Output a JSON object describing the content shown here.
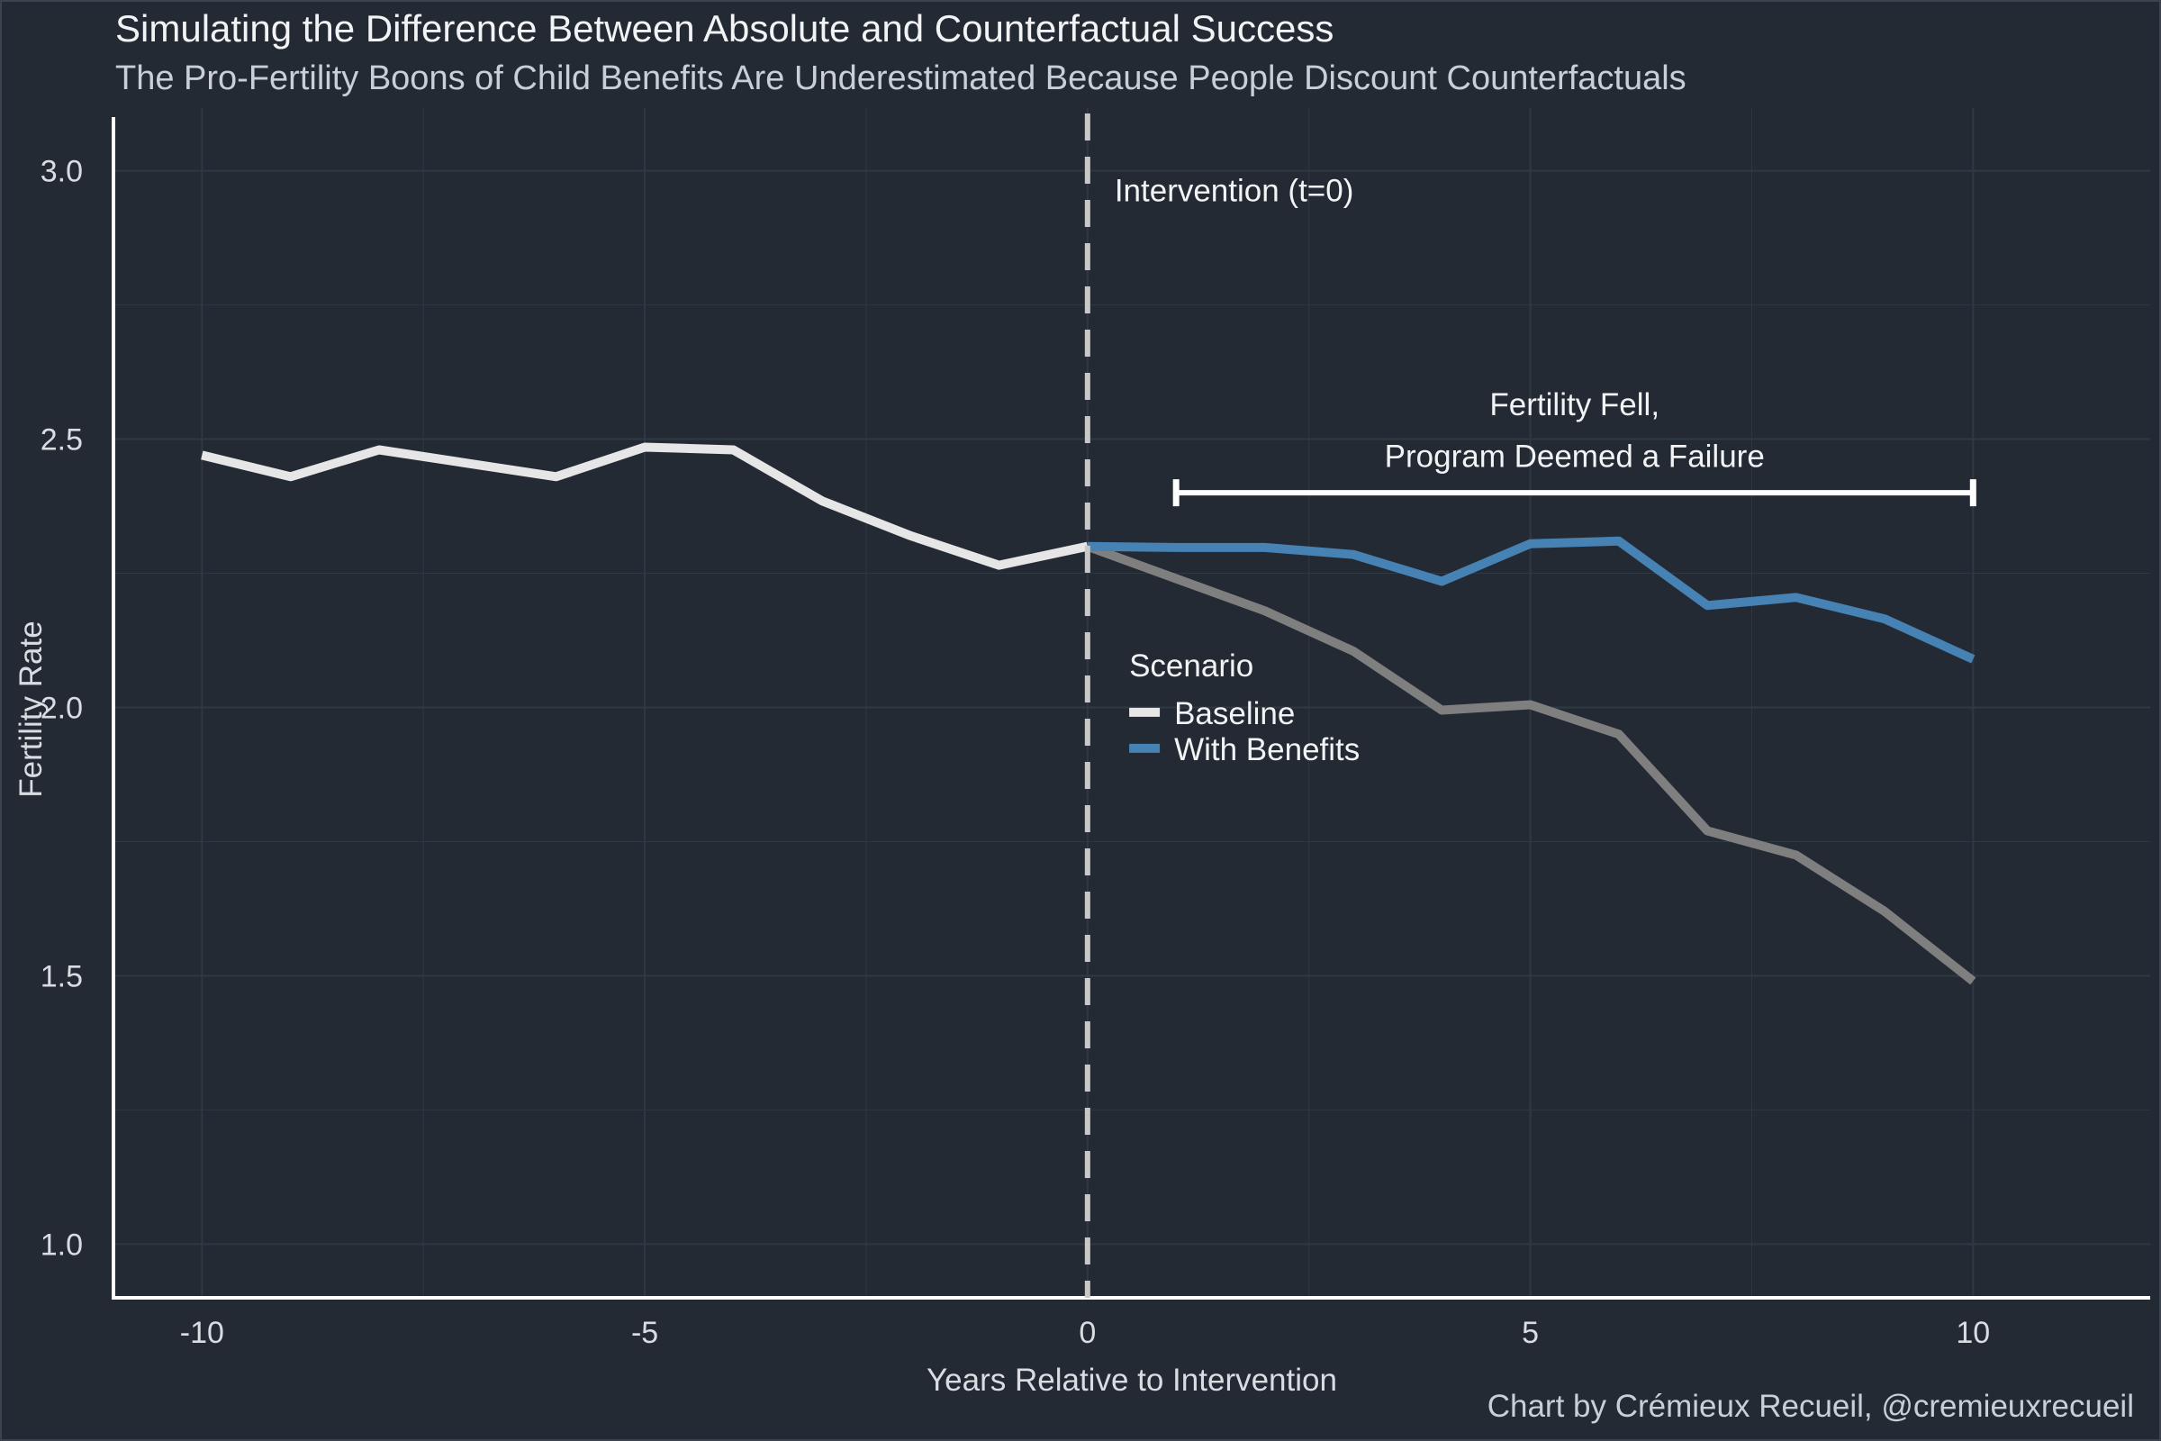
{
  "title": "Simulating the Difference Between Absolute and Counterfactual Success",
  "subtitle": "The Pro-Fertility Boons of Child Benefits Are Underestimated Because People Discount Counterfactuals",
  "caption": "Chart by Crémieux Recueil, @cremieuxrecueil",
  "colors": {
    "background": "#232a33",
    "grid": "#2f3843",
    "axis": "#ffffff",
    "text": "#d9dde2",
    "baseline_pre": "#e6e6e6",
    "baseline_post": "#7f7f7f",
    "with_benefits": "#4682b4",
    "intervention_line": "#c8c8c8"
  },
  "chart_data": {
    "type": "line",
    "xlabel": "Years Relative to Intervention",
    "ylabel": "Fertility Rate",
    "xlim": [
      -11,
      12
    ],
    "ylim": [
      0.9,
      3.1
    ],
    "xticks": [
      -10,
      -5,
      0,
      5,
      10
    ],
    "xtick_labels": [
      "-10",
      "-5",
      "0",
      "5",
      "10"
    ],
    "yticks": [
      1.0,
      1.5,
      2.0,
      2.5,
      3.0
    ],
    "ytick_labels": [
      "1.0",
      "1.5",
      "2.0",
      "2.5",
      "3.0"
    ],
    "grid": true,
    "series": [
      {
        "name": "Baseline",
        "x": [
          -10,
          -9,
          -8,
          -7,
          -6,
          -5,
          -4,
          -3,
          -2,
          -1,
          0,
          1,
          2,
          3,
          4,
          5,
          6,
          7,
          8,
          9,
          10
        ],
        "y": [
          2.47,
          2.43,
          2.48,
          2.455,
          2.43,
          2.485,
          2.48,
          2.385,
          2.32,
          2.265,
          2.3,
          2.24,
          2.18,
          2.105,
          1.995,
          2.005,
          1.95,
          1.77,
          1.725,
          1.62,
          1.49
        ],
        "color_pre": "#e6e6e6",
        "color_post": "#7f7f7f"
      },
      {
        "name": "With Benefits",
        "x": [
          0,
          1,
          2,
          3,
          4,
          5,
          6,
          7,
          8,
          9,
          10
        ],
        "y": [
          2.3,
          2.298,
          2.298,
          2.285,
          2.235,
          2.305,
          2.31,
          2.19,
          2.205,
          2.165,
          2.09
        ],
        "color": "#4682b4"
      }
    ],
    "intervention": {
      "x": 0,
      "label": "Intervention (t=0)"
    },
    "bracket": {
      "x_start": 1,
      "x_end": 10,
      "y": 2.4,
      "label_line1": "Fertility Fell,",
      "label_line2": "Program Deemed a Failure"
    },
    "legend": {
      "title": "Scenario",
      "placement": "center, right of the intervention line",
      "entries": [
        {
          "label": "Baseline",
          "color": "#e6e6e6"
        },
        {
          "label": "With Benefits",
          "color": "#4682b4"
        }
      ]
    }
  }
}
